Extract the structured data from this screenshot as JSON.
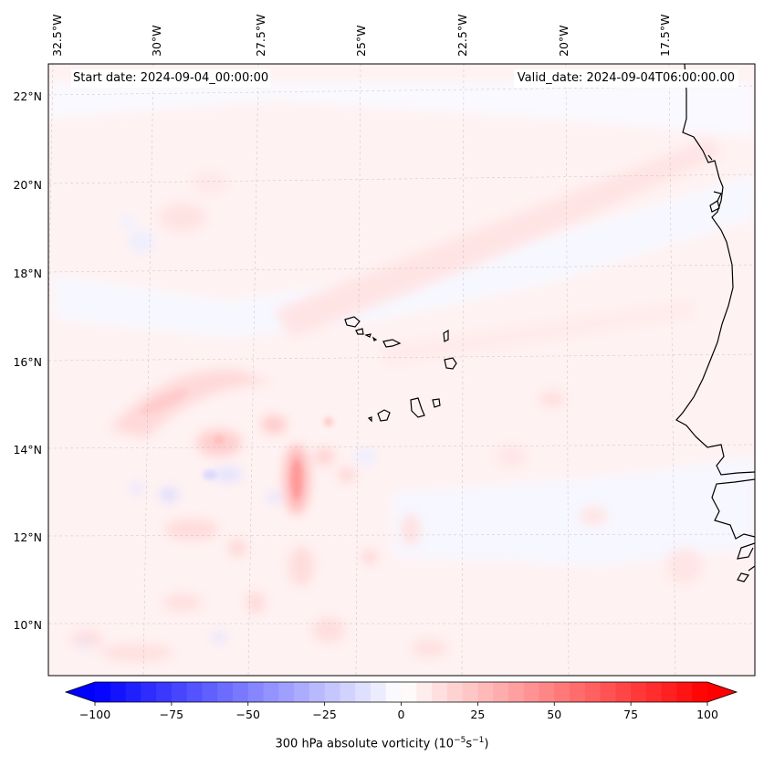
{
  "header": {
    "start_date": "Start date: 2024-09-04_00:00:00",
    "valid_date": "Valid_date: 2024-09-04T06:00:00.00"
  },
  "map": {
    "lon_labels": [
      "32.5°W",
      "30°W",
      "27.5°W",
      "25°W",
      "22.5°W",
      "20°W",
      "17.5°W"
    ],
    "lat_labels": [
      "22°N",
      "20°N",
      "18°N",
      "16°N",
      "14°N",
      "12°N",
      "10°N"
    ],
    "field": "300 hPa absolute vorticity",
    "region": "Cabo Verde and West African coast"
  },
  "colorbar": {
    "label_prefix": "300 hPa absolute vorticity (10",
    "label_exp1": "−5",
    "label_mid": "s",
    "label_exp2": "−1",
    "label_suffix": ")",
    "ticks": [
      "−100",
      "−75",
      "−50",
      "−25",
      "0",
      "25",
      "50",
      "75",
      "100"
    ],
    "min": -100,
    "max": 100,
    "colormap": "bwr",
    "extend": "both"
  }
}
